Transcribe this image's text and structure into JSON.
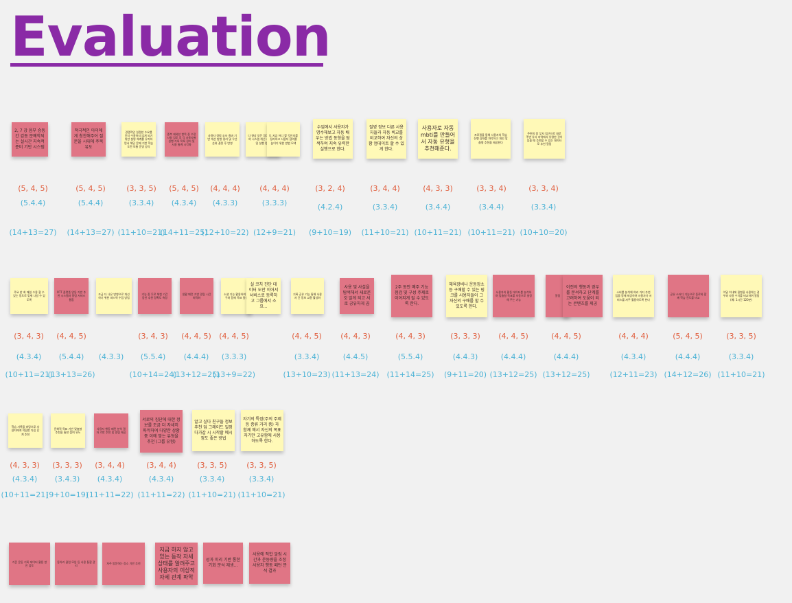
{
  "board": {
    "title": "Evaluation",
    "colors": {
      "title": "#8a2aa6",
      "pink_note": "#e07585",
      "yellow_note": "#fff9b7",
      "score_a": "#e05b3a",
      "score_b": "#4db3d6",
      "background": "#f1f1f1"
    }
  },
  "notes": [
    {
      "text": "2, 7 강 음부 승동간 감동 문예학되는 실시간 지속적 준비 기반 시스템",
      "color": "pink"
    },
    {
      "text": "적극적인 아이에게 칭찬해주어 질문을 시대에 주목 유도",
      "color": "pink"
    },
    {
      "text": "경쟁적인 일정한 수요를 단지 수용하지 않게 되기 위한 설명 체계를 유지하면서 해당 문제 기반 학습 도전 모듈 운영 방식",
      "color": "yellow"
    },
    {
      "text": "중복 제외한 항목 중 수정 사항 검토 후 각 사용자별 실행 기록 목록 정리 및 사용 통계 시각화",
      "color": "pink"
    },
    {
      "text": "사용자 경험 조사 결과 기반 개선 방향 정리 및 우선 순위 결정 후 반영",
      "color": "yellow"
    },
    {
      "text": "다 향상 모든 참여 동기 부여 시스템 개선 계획 수립 및 실행 평가",
      "color": "yellow"
    },
    {
      "text": "도 지금 어디 할 것인지를 정리하고 사용자 참여를 높이기 위한 방법 모색",
      "color": "yellow"
    },
    {
      "text": "수업에서 사용자가 명수해보고 자동 배우는 방법 동형을 탐색하여 지속 유력한 실행으로 한다.",
      "color": "yellow"
    },
    {
      "text": "질병 정보 다른 사용자들과 자동 비교를 비교하여 자신의 상황 업데이트 할 수 있게 한다.",
      "color": "yellow"
    },
    {
      "text": "사용자로 자동 mbti를 만들어서 자동 유형을 추천해준다.",
      "color": "yellow"
    },
    {
      "text": "프로필을 통해 사용자의 학습 진행 상태를 파악하고 개인 맞춤형 추천을 제공한다",
      "color": "yellow"
    },
    {
      "text": "주변의 장 무자 접근으로 대로 주변 유사 지역에서 유명한 것이 있을 때 추천할 수 있는 데이터로 추천 알림",
      "color": "yellow"
    },
    {
      "text": "주요 한 회 매일 수용 할 수 있는 정도로 맞춰 나갈 수 있도록",
      "color": "yellow"
    },
    {
      "text": "OTT 플랫폼 연동 기반 추천 시스템과 알림 서비스 통합",
      "color": "pink"
    },
    {
      "text": "조금 더 나은 방향으로 개선하기 위한 피드백 수집 방법",
      "color": "yellow"
    },
    {
      "text": "기능 중 무료 체험 기간 동안 추천 정확도 측정",
      "color": "pink"
    },
    {
      "text": "생활 패턴 기반 알림 시간 최적화",
      "color": "pink"
    },
    {
      "text": "소셜 기능 활용하여 친구와 함께 목표 달성",
      "color": "yellow"
    },
    {
      "text": "실 코치 진단 데이터 도안 이어서 서비스로 등록하고 그룹에서 소요...",
      "color": "yellow"
    },
    {
      "text": "기록 공유 기능 통해 사용자 간 정보 교환 활성화",
      "color": "yellow"
    },
    {
      "text": "사용 및 사설을 탐색해서 새로운 것 알게 되고 서로 공유하게 끔",
      "color": "pink"
    },
    {
      "text": "2주 동안 매주 기능 점검 및 구성 주제로 이어지게 될 수 있도록 한다.",
      "color": "pink"
    },
    {
      "text": "체육장비나 운동장소 등 구매할 수 있는 링크를 사용자들이 그 자신의 구매를 할 수 있도록 한다.",
      "color": "yellow"
    },
    {
      "text": "사용자의 활동 데이터를 분석하여 맞춤형 목표를 자동으로 설정해 주는 기능",
      "color": "pink"
    },
    {
      "text": "알림",
      "color": "pink"
    },
    {
      "text": "이전의 행동과 경우를 분석하고 단계를 고려하여 도움이 되는 콘텐츠를 제공",
      "color": "pink"
    },
    {
      "text": "소비를 분석해 여러 가지 추천 팁을 함께 제공하여 사용자가 서비스를 자주 활용하도록 한다",
      "color": "yellow"
    },
    {
      "text": "공유 스터디 기능으로 동료와 함께 학습 진도를 비교",
      "color": "pink"
    },
    {
      "text": "이달 이내에 질병을 사용하는 경우와 사용 수치를 비교하여 알림 (예: 1시간 120분)",
      "color": "yellow"
    },
    {
      "text": "학습 기록을 바탕으로 사용자에게 적합한 다음 단계 추천",
      "color": "yellow"
    },
    {
      "text": "문화적 목표 기반 맞춤형 추천을 통한 참여 유도",
      "color": "yellow"
    },
    {
      "text": "사용자 행동 패턴 분석 결과 기반 추천 및 알림 제공",
      "color": "pink"
    },
    {
      "text": "서로의 집단에 대한 정보를 조금 더 자세히 파악하여 다양한 상황 중 이에 맞는 유형을 추천 (그룹 유형)",
      "color": "pink"
    },
    {
      "text": "알고 싶다 친구들 정보 추천 업 그레이드 일정 다가갈 시 시작할 예시 정도 좋은 방법",
      "color": "yellow"
    },
    {
      "text": "자기의 특징(주의 주제 등 종류 거리 중) 과 함께 해서 자신의 목표 자기만 고유함에 사용하도록 한다.",
      "color": "yellow"
    },
    {
      "text": "기존 운동 기록 데이터 활용 방안 검토",
      "color": "pink"
    },
    {
      "text": "동아리 클럽 모임 등 사용 통합 관리",
      "color": "pink"
    },
    {
      "text": "자주 방문하는 장소 기반 추천",
      "color": "pink"
    },
    {
      "text": "지금 하지 않고 있는 동작 자세 상태를 알려주고 사용자의 이상적 자세 관계 파악",
      "color": "pink"
    },
    {
      "text": "성과 미리 기반 통한 기회 분석 재생...",
      "color": "pink"
    },
    {
      "text": "사용에 적합 알림 시간과 운동량을 조정 사용자 행동 패턴 분석 결과",
      "color": "pink"
    }
  ],
  "scores": [
    {
      "a": "(5, 4, 5)",
      "b": "(5.4.4)",
      "c": "(14+13=27)"
    },
    {
      "a": "(5, 4, 5)",
      "b": "(5.4.4)",
      "c": "(14+13=27)"
    },
    {
      "a": "(3, 3, 5)",
      "b": "(3.3.4)",
      "c": "(11+10=21)"
    },
    {
      "a": "(5, 4, 5)",
      "b": "(4.3.4)",
      "c": "(14+11=25)"
    },
    {
      "a": "(4, 4, 4)",
      "b": "(4.3.3)",
      "c": "(12+10=22)"
    },
    {
      "a": "(4, 4, 4)",
      "b": "(3.3.3)",
      "c": "(12+9=21)"
    },
    {
      "a": "(3, 2, 4)",
      "b": "(4.2.4)",
      "c": "(9+10=19)"
    },
    {
      "a": "(3, 4, 4)",
      "b": "(3.3.4)",
      "c": "(11+10=21)"
    },
    {
      "a": "(4, 3, 3)",
      "b": "(3.4.4)",
      "c": "(10+11=21)"
    },
    {
      "a": "(3, 3, 4)",
      "b": "(3.4.4)",
      "c": "(10+11=21)"
    },
    {
      "a": "(3, 3, 4)",
      "b": "(3.3.4)",
      "c": "(10+10=20)"
    },
    {
      "a": "(3, 4, 3)",
      "b": "(4.3.4)",
      "c": "(10+11=21)"
    },
    {
      "a": "(4, 4, 5)",
      "b": "(5.4.4)",
      "c": "(13+13=26)"
    },
    {
      "a": "",
      "b": "(4.3.3)",
      "c": ""
    },
    {
      "a": "(3, 4, 3)",
      "b": "(5.5.4)",
      "c": "(10+14=24)"
    },
    {
      "a": "(4, 4, 5)",
      "b": "(4.4.4)",
      "c": "(13+12=25)"
    },
    {
      "a": "(4, 4, 5)",
      "b": "(3.3.3)",
      "c": "(13+9=22)"
    },
    {
      "a": "(4, 4, 5)",
      "b": "(3.3.4)",
      "c": "(13+10=23)"
    },
    {
      "a": "(4, 4, 3)",
      "b": "(4.4.5)",
      "c": "(11+13=24)"
    },
    {
      "a": "(4, 4, 3)",
      "b": "(5.5.4)",
      "c": "(11+14=25)"
    },
    {
      "a": "(3, 3, 3)",
      "b": "(4.4.3)",
      "c": "(9+11=20)"
    },
    {
      "a": "(4, 4, 5)",
      "b": "(4.4.4)",
      "c": "(13+12=25)"
    },
    {
      "a": "(4, 4, 5)",
      "b": "(4.4.4)",
      "c": "(13+12=25)"
    },
    {
      "a": "(4, 4, 4)",
      "b": "(4.3.4)",
      "c": "(12+11=23)"
    },
    {
      "a": "(5, 4, 5)",
      "b": "(4.4.4)",
      "c": "(14+12=26)"
    },
    {
      "a": "(3, 3, 5)",
      "b": "(3.3.4)",
      "c": "(11+10=21)"
    },
    {
      "a": "(4, 3, 3)",
      "b": "(4.3.4)",
      "c": "(10+11=21)"
    },
    {
      "a": "(3, 3, 3)",
      "b": "(3.4.3)",
      "c": "(9+10=19)"
    },
    {
      "a": "(3, 4, 4)",
      "b": "(4.3.4)",
      "c": "(11+11=22)"
    },
    {
      "a": "(3, 4, 4)",
      "b": "(4.3.4)",
      "c": "(11+11=22)"
    },
    {
      "a": "(3, 3, 5)",
      "b": "(3.3.4)",
      "c": "(11+10=21)"
    },
    {
      "a": "(3, 3, 5)",
      "b": "(3.3.4)",
      "c": "(11+10=21)"
    }
  ]
}
